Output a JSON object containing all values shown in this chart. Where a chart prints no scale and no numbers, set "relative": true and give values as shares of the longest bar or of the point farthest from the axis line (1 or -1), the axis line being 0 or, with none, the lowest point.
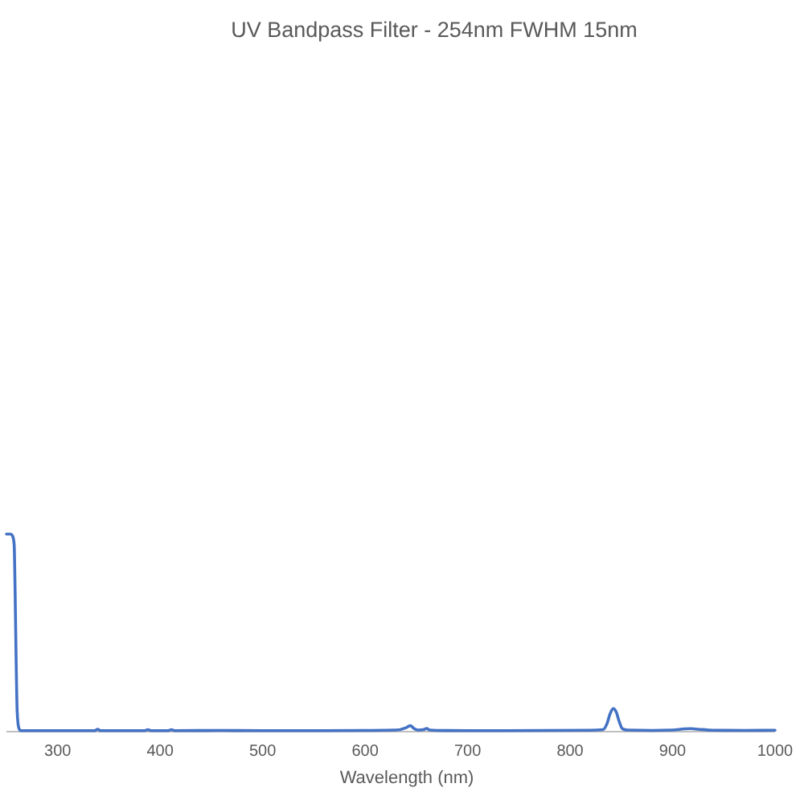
{
  "chart_data": {
    "type": "line",
    "title": "UV Bandpass Filter - 254nm FWHM 15nm",
    "xlabel": "Wavelength (nm)",
    "relative": true,
    "x": [
      250,
      254,
      256,
      257.5,
      258.5,
      259.5,
      260.5,
      262,
      264,
      300,
      336,
      339,
      342,
      385,
      388,
      391,
      408,
      411,
      414,
      460,
      500,
      560,
      600,
      630,
      640,
      644,
      648,
      652,
      657,
      660,
      663,
      670,
      700,
      780,
      820,
      832,
      836,
      839,
      842,
      845,
      848,
      851,
      856,
      880,
      900,
      912,
      918,
      925,
      940,
      970,
      1000
    ],
    "series": [
      {
        "color": "#4472c4",
        "values": [
          1,
          1,
          0.99,
          0.95,
          0.7,
          0.35,
          0.1,
          0.02,
          0.005,
          0.005,
          0.005,
          0.012,
          0.005,
          0.005,
          0.01,
          0.005,
          0.005,
          0.01,
          0.005,
          0.006,
          0.005,
          0.005,
          0.006,
          0.008,
          0.02,
          0.03,
          0.015,
          0.008,
          0.01,
          0.016,
          0.008,
          0.006,
          0.005,
          0.006,
          0.007,
          0.01,
          0.04,
          0.09,
          0.117,
          0.1,
          0.05,
          0.015,
          0.008,
          0.006,
          0.008,
          0.014,
          0.015,
          0.012,
          0.007,
          0.006,
          0.007
        ]
      }
    ],
    "xlim": [
      250,
      1000
    ],
    "xticks": [
      300,
      400,
      500,
      600,
      700,
      800,
      900,
      1000
    ]
  }
}
